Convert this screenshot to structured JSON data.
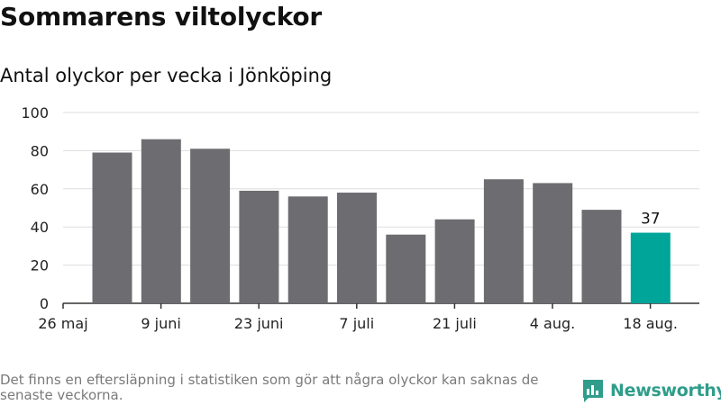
{
  "title": "Sommarens viltolyckor",
  "subtitle": "Antal olyckor per vecka i Jönköping",
  "footnote": "Det finns en eftersläpning i statistiken som gör att några olyckor kan saknas de senaste veckorna.",
  "logo": {
    "text": "Newsworthy",
    "icon": "newsworthy-logo-icon",
    "color": "#2f9d8a"
  },
  "colors": {
    "bar": "#6d6c70",
    "highlight": "#00a59a",
    "grid": "#dddddd",
    "axis": "#333333"
  },
  "chart_data": {
    "type": "bar",
    "title": "Sommarens viltolyckor",
    "subtitle": "Antal olyckor per vecka i Jönköping",
    "xlabel": "",
    "ylabel": "",
    "ylim": [
      0,
      100
    ],
    "yticks": [
      0,
      20,
      40,
      60,
      80,
      100
    ],
    "grid": true,
    "x_tick_labels": [
      "26 maj",
      "9 juni",
      "23 juni",
      "7 juli",
      "21 juli",
      "4 aug.",
      "18 aug."
    ],
    "values": [
      79,
      86,
      81,
      59,
      56,
      58,
      36,
      44,
      65,
      63,
      49,
      37
    ],
    "highlight_index": 11,
    "data_labels": [
      {
        "index": 11,
        "text": "37"
      }
    ]
  }
}
